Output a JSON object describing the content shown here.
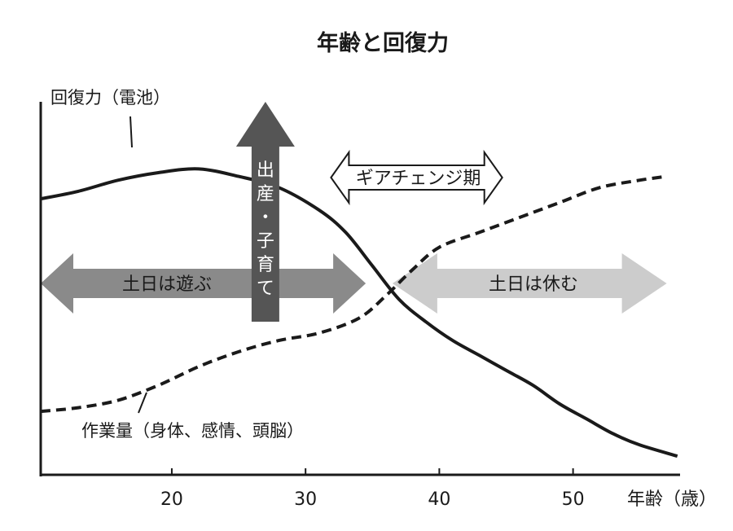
{
  "chart_data": {
    "type": "line",
    "title": "年齢と回復力",
    "xlabel": "年齢（歳）",
    "ylabel": "",
    "xlim": [
      10.2,
      58
    ],
    "x_ticks": [
      20,
      30,
      40,
      50
    ],
    "y_axis_tick_labels": false,
    "grid": false,
    "series": [
      {
        "name": "回復力（電池）",
        "style": "solid",
        "color": "#1a1a1a",
        "points": [
          [
            10.2,
            0.74
          ],
          [
            13,
            0.76
          ],
          [
            16,
            0.79
          ],
          [
            19,
            0.81
          ],
          [
            22,
            0.82
          ],
          [
            25,
            0.8
          ],
          [
            28,
            0.77
          ],
          [
            31,
            0.71
          ],
          [
            33,
            0.65
          ],
          [
            35,
            0.56
          ],
          [
            37,
            0.47
          ],
          [
            39,
            0.41
          ],
          [
            41,
            0.36
          ],
          [
            43,
            0.32
          ],
          [
            45,
            0.28
          ],
          [
            47,
            0.24
          ],
          [
            49,
            0.19
          ],
          [
            51,
            0.15
          ],
          [
            53,
            0.11
          ],
          [
            55,
            0.08
          ],
          [
            57.8,
            0.05
          ]
        ]
      },
      {
        "name": "作業量（身体、感情、頭脳）",
        "style": "dashed",
        "color": "#1a1a1a",
        "points": [
          [
            10.2,
            0.17
          ],
          [
            13,
            0.18
          ],
          [
            16,
            0.2
          ],
          [
            19,
            0.24
          ],
          [
            22,
            0.29
          ],
          [
            25,
            0.33
          ],
          [
            28,
            0.36
          ],
          [
            31,
            0.38
          ],
          [
            34,
            0.42
          ],
          [
            36,
            0.48
          ],
          [
            38,
            0.55
          ],
          [
            40,
            0.61
          ],
          [
            43,
            0.65
          ],
          [
            46,
            0.69
          ],
          [
            49,
            0.73
          ],
          [
            52,
            0.77
          ],
          [
            55,
            0.79
          ],
          [
            57,
            0.8
          ]
        ]
      }
    ],
    "annotations": {
      "play_weekends": {
        "text": "土日は遊ぶ",
        "color": "#8a8a8a",
        "x_range": [
          10.2,
          34.5
        ]
      },
      "rest_weekends": {
        "text": "土日は休む",
        "color": "#cccccc",
        "x_range": [
          36.5,
          57
        ]
      },
      "gear_change": {
        "text": "ギアチェンジ期",
        "x_range": [
          33,
          43
        ]
      },
      "childbirth": {
        "text_chars": [
          "出",
          "産",
          "・",
          "子",
          "育",
          "て"
        ],
        "color": "#555555",
        "x": 27
      },
      "battery_label": "回復力（電池）",
      "workload_label": "作業量（身体、感情、頭脳）"
    }
  }
}
